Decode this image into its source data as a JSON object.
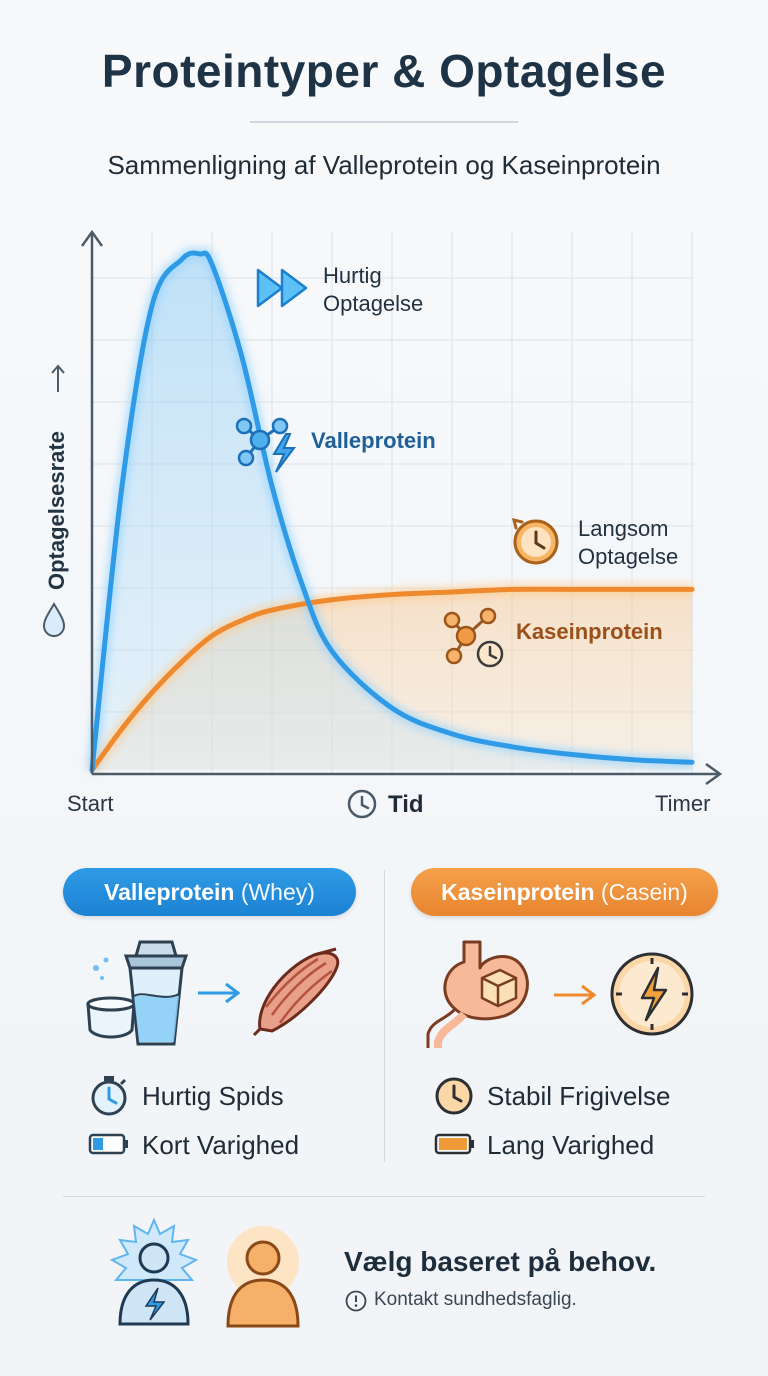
{
  "title": "Proteintyper & Optagelse",
  "subtitle": "Sammenligning af Valleprotein og Kaseinprotein",
  "chart": {
    "y_axis_label": "Optagelsesrate",
    "x_axis_label": "Tid",
    "x_start_label": "Start",
    "x_end_label": "Timer",
    "annotation_fast": [
      "Hurtig",
      "Optagelse"
    ],
    "annotation_slow": [
      "Langsom",
      "Optagelse"
    ],
    "series_whey_label": "Valleprotein",
    "series_casein_label": "Kaseinprotein",
    "colors": {
      "whey": "#2f9be6",
      "casein": "#ee8a2d"
    }
  },
  "chart_data": {
    "type": "area",
    "x_domain": [
      0,
      1
    ],
    "y_domain": [
      0,
      1
    ],
    "xlabel": "Tid",
    "ylabel": "Optagelsesrate",
    "grid": true,
    "series": [
      {
        "name": "Valleprotein",
        "x": [
          0,
          0.05,
          0.1,
          0.15,
          0.18,
          0.2,
          0.25,
          0.3,
          0.35,
          0.4,
          0.5,
          0.6,
          0.7,
          0.8,
          0.9,
          1.0
        ],
        "y": [
          0,
          0.55,
          0.9,
          0.99,
          1.0,
          0.98,
          0.8,
          0.55,
          0.36,
          0.23,
          0.12,
          0.07,
          0.045,
          0.03,
          0.02,
          0.015
        ]
      },
      {
        "name": "Kaseinprotein",
        "x": [
          0,
          0.05,
          0.1,
          0.15,
          0.2,
          0.25,
          0.3,
          0.4,
          0.5,
          0.6,
          0.7,
          0.8,
          0.9,
          1.0
        ],
        "y": [
          0,
          0.08,
          0.15,
          0.21,
          0.26,
          0.29,
          0.31,
          0.33,
          0.34,
          0.345,
          0.35,
          0.35,
          0.35,
          0.35
        ]
      }
    ]
  },
  "whey_card": {
    "label_bold": "Valleprotein",
    "label_paren": "(Whey)",
    "feature_1": "Hurtig Spids",
    "feature_2": "Kort Varighed"
  },
  "casein_card": {
    "label_bold": "Kaseinprotein",
    "label_paren": "(Casein)",
    "feature_1": "Stabil Frigivelse",
    "feature_2": "Lang Varighed"
  },
  "footer": {
    "title": "Vælg baseret på behov.",
    "note": "Kontakt sundhedsfaglig."
  }
}
